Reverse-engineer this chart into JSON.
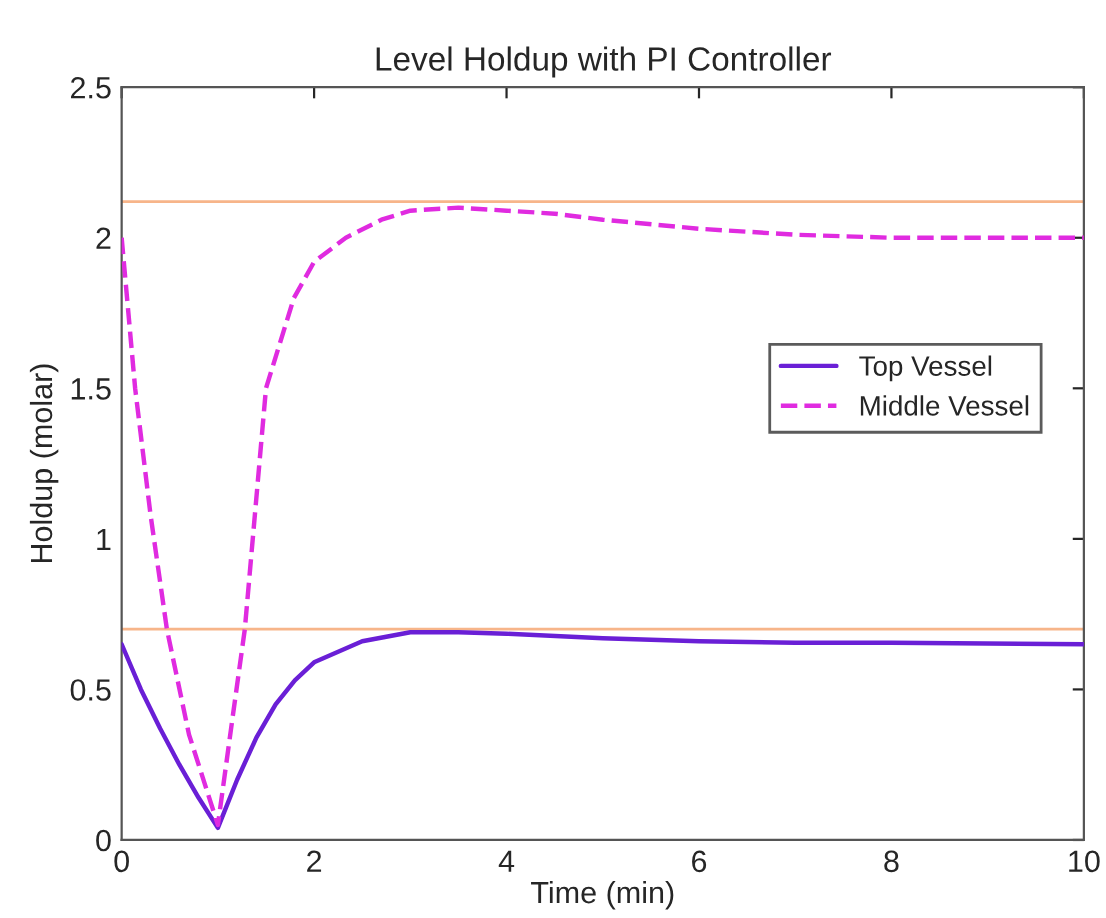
{
  "chart_data": {
    "type": "line",
    "title": "Level Holdup with PI Controller",
    "xlabel": "Time (min)",
    "ylabel": "Holdup (molar)",
    "xlim": [
      0,
      10
    ],
    "ylim": [
      0,
      2.5
    ],
    "xticks": [
      0,
      2,
      4,
      6,
      8,
      10
    ],
    "yticks": [
      0,
      0.5,
      1,
      1.5,
      2,
      2.5
    ],
    "grid": false,
    "legend": "right",
    "marker": "none",
    "series": [
      {
        "name": "Top Vessel",
        "color": "#6a1fd6",
        "line_style": "solid",
        "x": [
          0,
          0.2,
          0.4,
          0.6,
          0.8,
          1.0,
          1.2,
          1.4,
          1.6,
          1.8,
          2.0,
          2.5,
          3.0,
          3.5,
          4,
          5,
          6,
          7,
          8,
          10
        ],
        "values": [
          0.65,
          0.5,
          0.37,
          0.25,
          0.14,
          0.04,
          0.2,
          0.34,
          0.45,
          0.53,
          0.59,
          0.66,
          0.69,
          0.69,
          0.685,
          0.67,
          0.66,
          0.655,
          0.655,
          0.65
        ]
      },
      {
        "name": "Middle Vessel",
        "color": "#e02be0",
        "line_style": "dashed",
        "x": [
          0,
          0.07,
          0.14,
          0.3,
          0.47,
          0.7,
          1.0,
          1.15,
          1.28,
          1.5,
          1.79,
          2.0,
          2.33,
          2.7,
          3.0,
          3.5,
          4.0,
          4.5,
          5,
          6,
          7,
          8,
          10
        ],
        "values": [
          2.0,
          1.75,
          1.5,
          1.08,
          0.7,
          0.35,
          0.05,
          0.4,
          0.7,
          1.5,
          1.8,
          1.92,
          2.0,
          2.06,
          2.09,
          2.1,
          2.09,
          2.08,
          2.06,
          2.03,
          2.01,
          2.0,
          2.0
        ]
      }
    ],
    "ref_lines": [
      {
        "axis": "y",
        "value": 2.12,
        "color": "#f7b58a"
      },
      {
        "axis": "y",
        "value": 0.7,
        "color": "#f7b58a"
      }
    ]
  }
}
